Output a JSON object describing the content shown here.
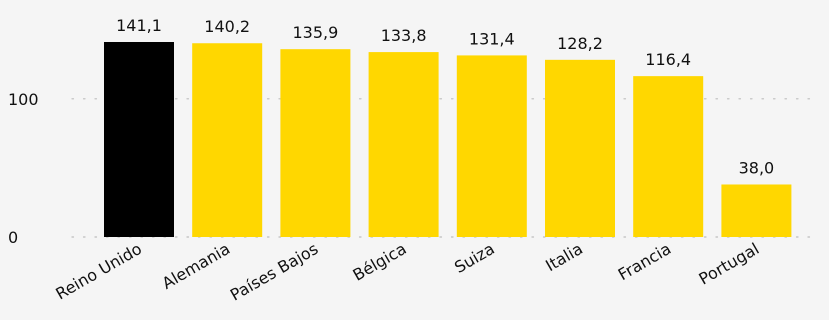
{
  "chart_data": {
    "type": "bar",
    "categories": [
      "Reino Unido",
      "Alemania",
      "Países Bajos",
      "Bélgica",
      "Suiza",
      "Italia",
      "Francia",
      "Portugal"
    ],
    "values": [
      141.1,
      140.2,
      135.9,
      133.8,
      131.4,
      128.2,
      116.4,
      38.0
    ],
    "value_labels": [
      "141,1",
      "140,2",
      "135,9",
      "133,8",
      "131,4",
      "128,2",
      "116,4",
      "38,0"
    ],
    "y_ticks": [
      0,
      100
    ],
    "y_tick_labels": [
      "0",
      "100"
    ],
    "ylim": [
      0,
      141.1
    ],
    "grid": "dotted horizontal",
    "colors": {
      "highlight": "#000000",
      "bar": "#FFD700",
      "grid": "#bdbdbd",
      "background": "#f5f5f5",
      "text": "#111111"
    },
    "highlight_index": 0,
    "title": "",
    "xlabel": "",
    "ylabel": ""
  }
}
